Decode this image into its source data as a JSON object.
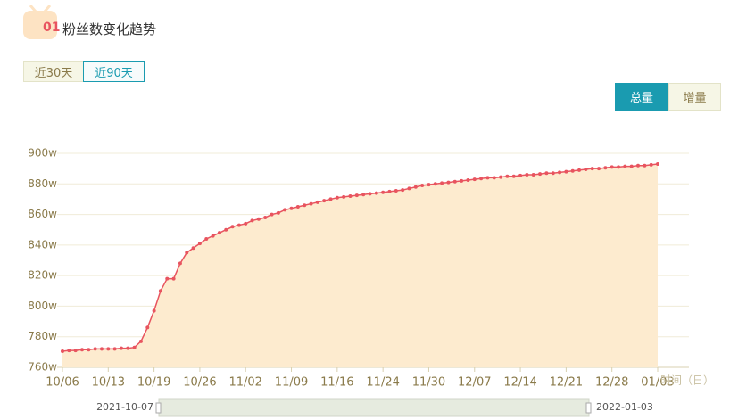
{
  "header": {
    "index": "01",
    "title": "粉丝数变化趋势"
  },
  "range_tabs": [
    "近30天",
    "近90天"
  ],
  "mode_tabs": [
    "总量",
    "增量"
  ],
  "chart_data": {
    "type": "line",
    "x_axis_name": "时间（日）",
    "categories": [
      "10/06",
      null,
      null,
      null,
      null,
      null,
      null,
      "10/13",
      null,
      null,
      null,
      null,
      null,
      null,
      "10/19",
      null,
      null,
      null,
      null,
      null,
      null,
      "10/26",
      null,
      null,
      null,
      null,
      null,
      null,
      "11/02",
      null,
      null,
      null,
      null,
      null,
      null,
      "11/09",
      null,
      null,
      null,
      null,
      null,
      null,
      "11/16",
      null,
      null,
      null,
      null,
      null,
      null,
      "11/24",
      null,
      null,
      null,
      null,
      null,
      null,
      "11/30",
      null,
      null,
      null,
      null,
      null,
      null,
      "12/07",
      null,
      null,
      null,
      null,
      null,
      null,
      "12/14",
      null,
      null,
      null,
      null,
      null,
      null,
      "12/21",
      null,
      null,
      null,
      null,
      null,
      null,
      "12/28",
      null,
      null,
      null,
      null,
      null,
      null,
      "01/03"
    ],
    "values": [
      770.5,
      771,
      771,
      771.5,
      771.5,
      772,
      772,
      772,
      772,
      772.5,
      772.5,
      773,
      777,
      786,
      797,
      810,
      818,
      818,
      828,
      835,
      838,
      841,
      844,
      846,
      848,
      850,
      852,
      853,
      854,
      856,
      857,
      858,
      860,
      861,
      863,
      864,
      865,
      866,
      867,
      868,
      869,
      870,
      871,
      871.5,
      872,
      872.5,
      873,
      873.5,
      874,
      874.5,
      875,
      875.5,
      876,
      877,
      878,
      879,
      879.5,
      880,
      880.5,
      881,
      881.5,
      882,
      882.5,
      883,
      883.5,
      884,
      884,
      884.5,
      885,
      885,
      885.5,
      886,
      886,
      886.5,
      887,
      887,
      887.5,
      888,
      888.5,
      889,
      889.5,
      890,
      890,
      890.5,
      891,
      891,
      891.5,
      891.5,
      892,
      892,
      892.5,
      893
    ],
    "color": "#e8545f",
    "area_color": "#fdebcf",
    "ylim": [
      760,
      900
    ],
    "yticks": [
      {
        "value": 760,
        "label": "760w"
      },
      {
        "value": 780,
        "label": "780w"
      },
      {
        "value": 800,
        "label": "800w"
      },
      {
        "value": 820,
        "label": "820w"
      },
      {
        "value": 840,
        "label": "840w"
      },
      {
        "value": 860,
        "label": "860w"
      },
      {
        "value": 880,
        "label": "880w"
      },
      {
        "value": 900,
        "label": "900w"
      }
    ],
    "grid": true,
    "zoom_start": "2021-10-07",
    "zoom_end": "2022-01-03"
  }
}
